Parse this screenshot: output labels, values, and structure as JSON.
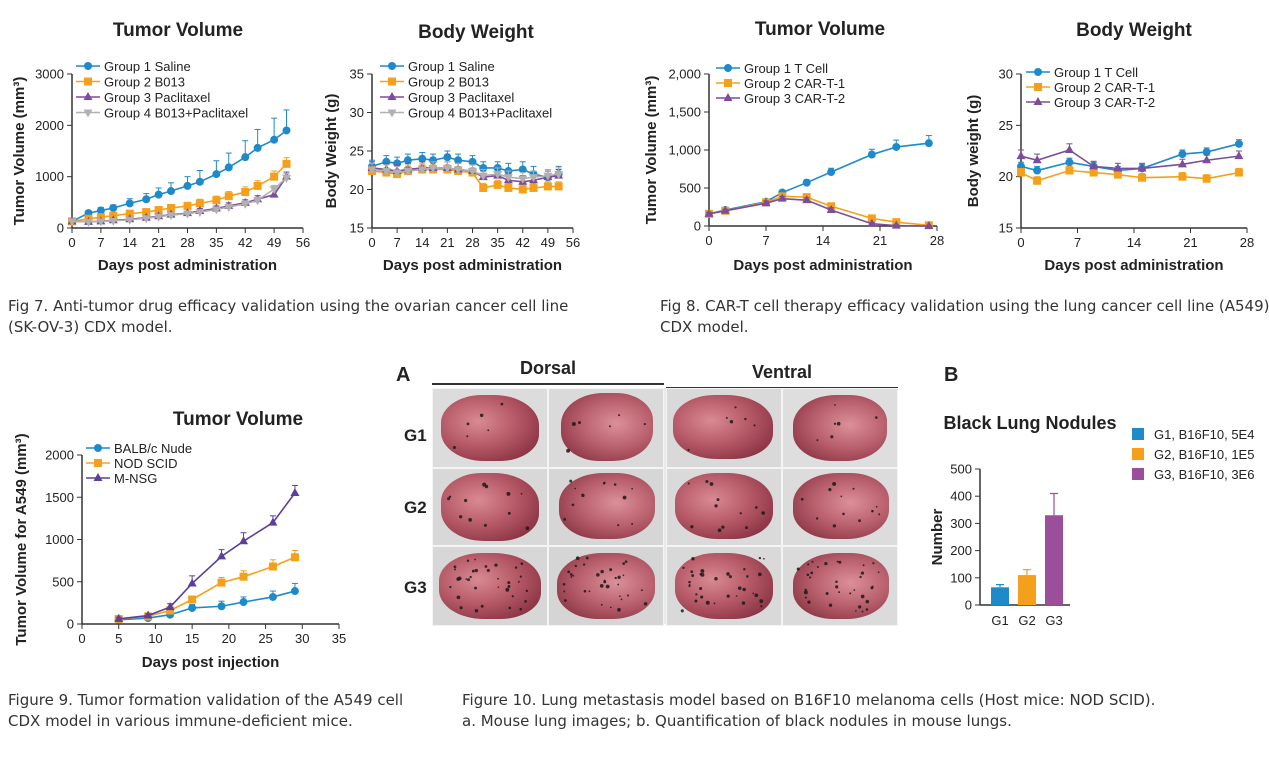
{
  "chart_data": [
    {
      "id": "fig7a",
      "type": "line",
      "title": "Tumor Volume",
      "xlabel": "Days post administration",
      "ylabel": "Tumor Volume (mm³)",
      "xlim": [
        0,
        56
      ],
      "ylim": [
        0,
        3000
      ],
      "xticks": [
        "0",
        "7",
        "14",
        "21",
        "28",
        "35",
        "42",
        "49",
        "56"
      ],
      "yticks": [
        "0",
        "1000",
        "2000",
        "3000"
      ],
      "series": [
        {
          "name": "Group 1 Saline",
          "color": "#1f8ac9",
          "marker": "circle",
          "x": [
            0,
            4,
            7,
            10,
            14,
            18,
            21,
            24,
            28,
            31,
            35,
            38,
            42,
            45,
            49,
            52
          ],
          "y": [
            130,
            290,
            340,
            390,
            480,
            560,
            650,
            720,
            820,
            900,
            1050,
            1180,
            1380,
            1560,
            1720,
            1900
          ],
          "err": [
            40,
            50,
            60,
            60,
            90,
            110,
            130,
            160,
            180,
            220,
            260,
            280,
            320,
            360,
            420,
            400
          ]
        },
        {
          "name": "Group 2 B013",
          "color": "#f5a01a",
          "marker": "square",
          "x": [
            0,
            4,
            7,
            10,
            14,
            18,
            21,
            24,
            28,
            31,
            35,
            38,
            42,
            45,
            49,
            52
          ],
          "y": [
            130,
            180,
            210,
            240,
            280,
            310,
            350,
            390,
            430,
            480,
            540,
            620,
            700,
            820,
            1000,
            1250
          ],
          "err": [
            30,
            40,
            40,
            40,
            50,
            50,
            60,
            60,
            70,
            80,
            80,
            90,
            100,
            100,
            110,
            120
          ]
        },
        {
          "name": "Group 3 Paclitaxel",
          "color": "#7b4d9a",
          "marker": "triangle",
          "x": [
            0,
            4,
            7,
            10,
            14,
            18,
            21,
            24,
            28,
            31,
            35,
            38,
            42,
            45,
            49,
            52
          ],
          "y": [
            130,
            120,
            130,
            150,
            170,
            200,
            230,
            260,
            290,
            330,
            380,
            430,
            490,
            560,
            650,
            1000
          ],
          "err": [
            20,
            20,
            20,
            30,
            30,
            30,
            40,
            40,
            40,
            50,
            50,
            60,
            60,
            70,
            80,
            90
          ]
        },
        {
          "name": "Group 4 B013+Paclitaxel",
          "color": "#b0b0b0",
          "marker": "triangle-down",
          "x": [
            0,
            4,
            7,
            10,
            14,
            18,
            21,
            24,
            28,
            31,
            35,
            38,
            42,
            45,
            49,
            52
          ],
          "y": [
            130,
            120,
            130,
            140,
            160,
            190,
            220,
            250,
            280,
            310,
            360,
            410,
            470,
            540,
            760,
            980
          ],
          "err": [
            20,
            20,
            20,
            30,
            30,
            30,
            30,
            40,
            40,
            40,
            50,
            50,
            60,
            60,
            70,
            80
          ]
        }
      ]
    },
    {
      "id": "fig7b",
      "type": "line",
      "title": "Body Weight",
      "xlabel": "Days post administration",
      "ylabel": "Body Weight (g)",
      "xlim": [
        0,
        56
      ],
      "ylim": [
        15,
        35
      ],
      "xticks": [
        "0",
        "7",
        "14",
        "21",
        "28",
        "35",
        "42",
        "49",
        "56"
      ],
      "yticks": [
        "15",
        "20",
        "25",
        "30",
        "35"
      ],
      "series": [
        {
          "name": "Group 1 Saline",
          "color": "#1f8ac9",
          "marker": "circle",
          "x": [
            0,
            4,
            7,
            10,
            14,
            17,
            21,
            24,
            28,
            31,
            35,
            38,
            42,
            45,
            49,
            52
          ],
          "y": [
            23.0,
            23.6,
            23.4,
            23.8,
            24.0,
            23.8,
            24.2,
            23.8,
            23.6,
            22.8,
            22.8,
            22.4,
            22.6,
            22.0,
            21.6,
            22.0
          ],
          "err": [
            0.8,
            0.8,
            0.8,
            0.8,
            0.8,
            0.8,
            0.8,
            0.8,
            0.8,
            0.8,
            0.8,
            1.0,
            1.0,
            1.0,
            1.0,
            1.0
          ]
        },
        {
          "name": "Group 2 B013",
          "color": "#f5a01a",
          "marker": "square",
          "x": [
            0,
            4,
            7,
            10,
            14,
            17,
            21,
            24,
            28,
            31,
            35,
            38,
            42,
            45,
            49,
            52
          ],
          "y": [
            22.4,
            22.2,
            22.0,
            22.4,
            22.6,
            22.6,
            22.6,
            22.4,
            22.2,
            20.2,
            20.6,
            20.2,
            20.0,
            20.2,
            20.4,
            20.4
          ],
          "err": [
            0.6,
            0.6,
            0.6,
            0.6,
            0.6,
            0.6,
            0.6,
            0.6,
            0.6,
            0.6,
            0.6,
            0.6,
            0.6,
            0.6,
            0.6,
            0.6
          ]
        },
        {
          "name": "Group 3 Paclitaxel",
          "color": "#7b4d9a",
          "marker": "triangle",
          "x": [
            0,
            4,
            7,
            10,
            14,
            17,
            21,
            24,
            28,
            31,
            35,
            38,
            42,
            45,
            49,
            52
          ],
          "y": [
            22.8,
            22.6,
            22.4,
            22.6,
            22.8,
            22.8,
            22.8,
            22.6,
            22.4,
            21.6,
            21.8,
            21.2,
            21.0,
            21.2,
            21.6,
            21.8
          ],
          "err": [
            0.8,
            0.8,
            0.8,
            0.8,
            0.8,
            0.8,
            0.8,
            0.8,
            0.8,
            0.8,
            0.8,
            0.8,
            0.8,
            0.8,
            0.8,
            0.8
          ]
        },
        {
          "name": "Group 4 B013+Paclitaxel",
          "color": "#b0b0b0",
          "marker": "triangle-down",
          "x": [
            0,
            4,
            7,
            10,
            14,
            17,
            21,
            24,
            28,
            31,
            35,
            38,
            42,
            45,
            49,
            52
          ],
          "y": [
            22.6,
            22.4,
            22.2,
            22.4,
            22.6,
            22.8,
            22.8,
            22.6,
            22.4,
            21.8,
            22.0,
            21.6,
            21.4,
            21.6,
            21.8,
            22.0
          ],
          "err": [
            0.8,
            0.8,
            0.8,
            0.8,
            0.8,
            0.8,
            0.8,
            0.8,
            0.8,
            0.8,
            0.8,
            0.8,
            0.8,
            0.8,
            0.8,
            0.8
          ]
        }
      ]
    },
    {
      "id": "fig8a",
      "type": "line",
      "title": "Tumor Volume",
      "xlabel": "Days post administration",
      "ylabel": "Tumor Volume (mm³)",
      "xlim": [
        0,
        28
      ],
      "ylim": [
        0,
        2000
      ],
      "xticks": [
        "0",
        "7",
        "14",
        "21",
        "28"
      ],
      "yticks": [
        "0",
        "500",
        "1,000",
        "1,500",
        "2,000"
      ],
      "series": [
        {
          "name": "Group 1 T Cell",
          "color": "#1f8ac9",
          "marker": "circle",
          "x": [
            0,
            2,
            7,
            9,
            12,
            15,
            20,
            23,
            27
          ],
          "y": [
            160,
            210,
            320,
            440,
            570,
            710,
            940,
            1040,
            1090
          ],
          "err": [
            20,
            25,
            30,
            30,
            40,
            50,
            70,
            90,
            100
          ]
        },
        {
          "name": "Group 2 CAR-T-1",
          "color": "#f5a01a",
          "marker": "square",
          "x": [
            0,
            2,
            7,
            9,
            12,
            15,
            20,
            23,
            27
          ],
          "y": [
            160,
            200,
            310,
            390,
            380,
            260,
            100,
            50,
            10
          ],
          "err": [
            20,
            20,
            30,
            30,
            30,
            30,
            20,
            15,
            10
          ]
        },
        {
          "name": "Group 3 CAR-T-2",
          "color": "#7b4d9a",
          "marker": "triangle",
          "x": [
            0,
            2,
            7,
            9,
            12,
            15,
            20,
            23,
            27
          ],
          "y": [
            160,
            200,
            300,
            360,
            340,
            210,
            30,
            5,
            0
          ],
          "err": [
            20,
            20,
            30,
            30,
            30,
            30,
            15,
            10,
            5
          ]
        }
      ]
    },
    {
      "id": "fig8b",
      "type": "line",
      "title": "Body Weight",
      "xlabel": "Days post administration",
      "ylabel": "Body weight (g)",
      "xlim": [
        0,
        28
      ],
      "ylim": [
        15,
        30
      ],
      "xticks": [
        "0",
        "7",
        "14",
        "21",
        "28"
      ],
      "yticks": [
        "15",
        "20",
        "25",
        "30"
      ],
      "series": [
        {
          "name": "Group 1 T Cell",
          "color": "#1f8ac9",
          "marker": "circle",
          "x": [
            0,
            2,
            6,
            9,
            12,
            15,
            20,
            23,
            27
          ],
          "y": [
            21.0,
            20.6,
            21.4,
            21.0,
            20.6,
            20.8,
            22.2,
            22.4,
            23.2
          ],
          "err": [
            0.4,
            0.4,
            0.4,
            0.4,
            0.4,
            0.4,
            0.4,
            0.4,
            0.4
          ]
        },
        {
          "name": "Group 2 CAR-T-1",
          "color": "#f5a01a",
          "marker": "square",
          "x": [
            0,
            2,
            6,
            9,
            12,
            15,
            20,
            23,
            27
          ],
          "y": [
            20.4,
            19.6,
            20.6,
            20.4,
            20.2,
            19.9,
            20.0,
            19.8,
            20.4
          ],
          "err": [
            0.4,
            0.4,
            0.4,
            0.4,
            0.4,
            0.4,
            0.4,
            0.4,
            0.4
          ]
        },
        {
          "name": "Group 3 CAR-T-2",
          "color": "#7b4d9a",
          "marker": "triangle",
          "x": [
            0,
            2,
            6,
            9,
            12,
            15,
            20,
            23,
            27
          ],
          "y": [
            22.0,
            21.6,
            22.6,
            21.0,
            20.8,
            20.8,
            21.2,
            21.6,
            22.0
          ],
          "err": [
            0.6,
            0.6,
            0.6,
            0.5,
            0.5,
            0.5,
            0.5,
            0.5,
            0.5
          ]
        }
      ]
    },
    {
      "id": "fig9",
      "type": "line",
      "title": "Tumor Volume",
      "xlabel": "Days post injection",
      "ylabel": "Tumor Volume for A549 (mm³)",
      "xlim": [
        0,
        35
      ],
      "ylim": [
        0,
        2000
      ],
      "xticks": [
        "0",
        "5",
        "10",
        "15",
        "20",
        "25",
        "30",
        "35"
      ],
      "yticks": [
        "0",
        "500",
        "1000",
        "1500",
        "2000"
      ],
      "series": [
        {
          "name": "BALB/c Nude",
          "color": "#1f8ac9",
          "marker": "circle",
          "x": [
            5,
            9,
            12,
            15,
            19,
            22,
            26,
            29
          ],
          "y": [
            50,
            70,
            110,
            190,
            210,
            260,
            320,
            390
          ],
          "err": [
            20,
            20,
            30,
            40,
            60,
            60,
            70,
            90
          ]
        },
        {
          "name": "NOD SCID",
          "color": "#f5a01a",
          "marker": "square",
          "x": [
            5,
            9,
            12,
            15,
            19,
            22,
            26,
            29
          ],
          "y": [
            60,
            90,
            160,
            290,
            490,
            560,
            680,
            790
          ],
          "err": [
            20,
            20,
            30,
            40,
            60,
            70,
            80,
            80
          ]
        },
        {
          "name": "M-NSG",
          "color": "#5b3f9b",
          "marker": "triangle",
          "x": [
            5,
            9,
            12,
            15,
            19,
            22,
            26,
            29
          ],
          "y": [
            60,
            100,
            200,
            480,
            800,
            980,
            1200,
            1550
          ],
          "err": [
            20,
            20,
            40,
            90,
            80,
            100,
            80,
            90
          ]
        }
      ]
    },
    {
      "id": "fig10b",
      "type": "bar",
      "title": "Black Lung Nodules",
      "xlabel": "",
      "ylabel": "Number",
      "ylim": [
        0,
        500
      ],
      "yticks": [
        "0",
        "100",
        "200",
        "300",
        "400",
        "500"
      ],
      "categories": [
        "G1",
        "G2",
        "G3"
      ],
      "values": [
        65,
        110,
        330
      ],
      "errors": [
        10,
        20,
        80
      ],
      "colors": [
        "#1f8ac9",
        "#f5a01a",
        "#9b4f9a"
      ],
      "legend": [
        "G1, B16F10, 5E4",
        "G2, B16F10, 1E5",
        "G3, B16F10, 3E6"
      ]
    }
  ],
  "figure10": {
    "panel_a": "A",
    "panel_b": "B",
    "dorsal": "Dorsal",
    "ventral": "Ventral",
    "rows": [
      "G1",
      "G2",
      "G3"
    ]
  },
  "captions": {
    "fig7_line1": "Fig 7. Anti-tumor drug efficacy validation using the ovarian cancer cell line",
    "fig7_line2": "(SK-OV-3) CDX model.",
    "fig8_line1": "Fig 8. CAR-T cell therapy efficacy validation using the lung cancer cell line (A549)",
    "fig8_line2": "CDX model.",
    "fig9_line1": "Figure 9. Tumor formation validation of the A549 cell",
    "fig9_line2": "CDX model in various immune-deficient mice.",
    "fig10_line1": "Figure 10. Lung metastasis model based on B16F10 melanoma cells (Host mice: NOD SCID).",
    "fig10_line2": "a. Mouse lung images; b. Quantification of black nodules in mouse lungs."
  }
}
